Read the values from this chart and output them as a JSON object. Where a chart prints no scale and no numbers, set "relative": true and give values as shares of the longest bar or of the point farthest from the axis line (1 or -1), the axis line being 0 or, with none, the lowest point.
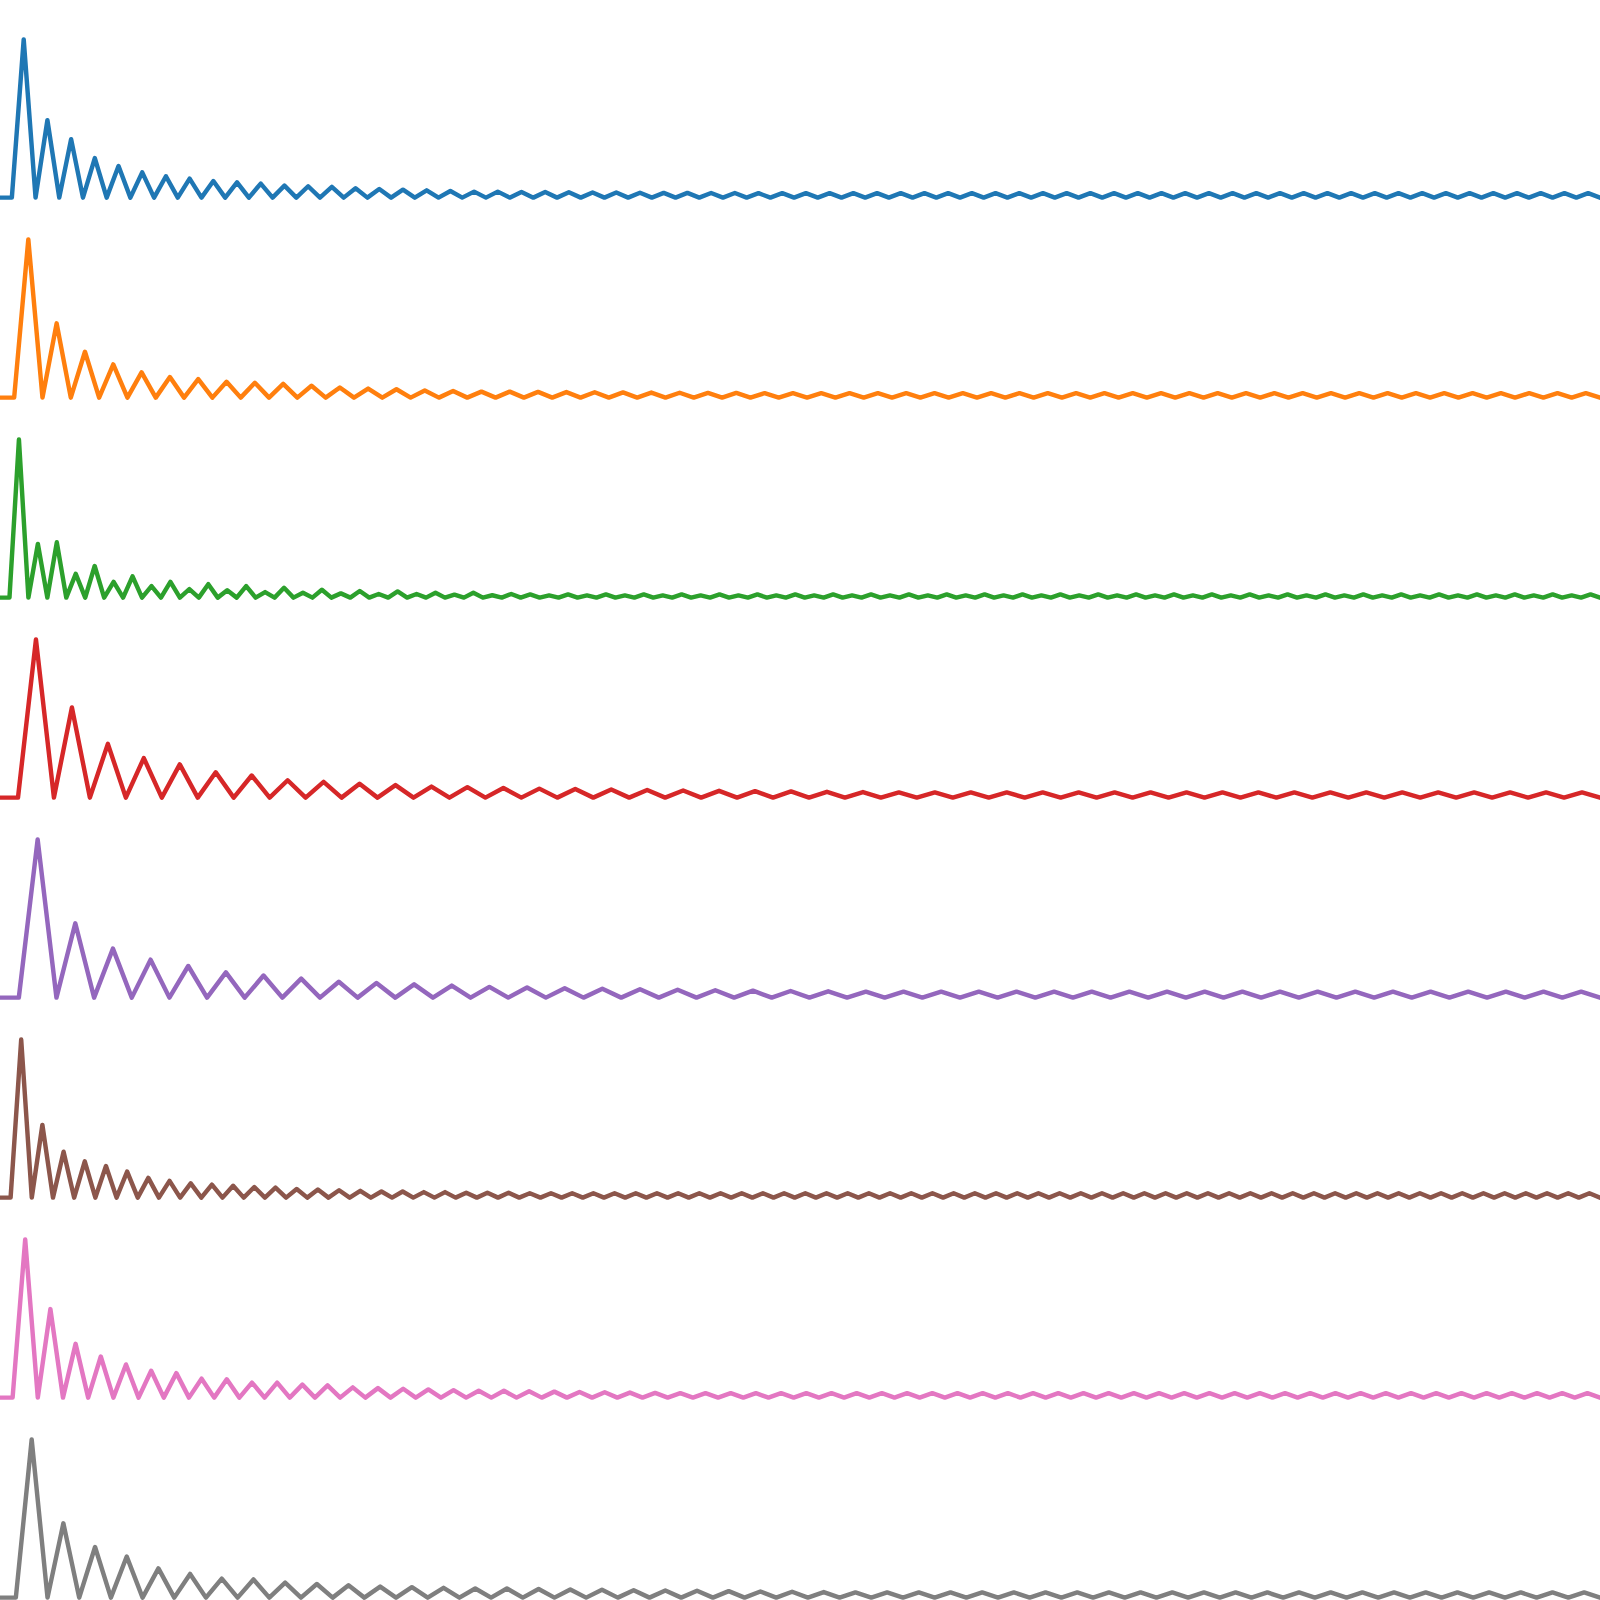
{
  "chart_data": [
    {
      "type": "line",
      "relative": true,
      "categories": [
        null,
        null,
        null,
        null,
        null,
        null,
        null,
        null,
        null,
        null,
        null,
        null,
        null,
        null,
        null,
        null,
        null,
        null,
        null,
        null,
        null,
        null,
        null,
        null,
        null,
        null,
        null,
        null,
        null,
        null,
        null,
        null,
        null,
        null,
        null,
        null,
        null,
        null,
        null,
        null,
        null,
        null,
        null,
        null,
        null,
        null,
        null,
        null,
        null,
        null,
        null,
        null,
        null,
        null,
        null,
        null,
        null,
        null,
        null,
        null,
        null,
        null,
        null,
        null,
        null,
        null,
        null,
        null,
        null,
        null,
        null,
        null,
        null,
        null,
        null,
        null,
        null,
        null,
        null,
        null,
        null,
        null,
        null,
        null,
        null,
        null,
        null,
        null,
        null,
        null,
        null,
        null,
        null,
        null,
        null,
        null,
        null,
        null,
        null,
        null,
        null,
        null,
        null,
        null,
        null,
        null,
        null,
        null,
        null,
        null,
        null,
        null,
        null,
        null,
        null,
        null,
        null,
        null,
        null,
        null,
        null,
        null,
        null,
        null,
        null,
        null,
        null,
        null,
        null,
        null,
        null,
        null,
        null,
        null,
        null,
        null
      ],
      "series": [
        {
          "color": "#1f77b4",
          "values": [
            0,
            0,
            1,
            0,
            0.49,
            0,
            0.37,
            0,
            0.25,
            0,
            0.2,
            0,
            0.16,
            0,
            0.135,
            0,
            0.12,
            0,
            0.105,
            0,
            0.097,
            0,
            0.089,
            0,
            0.076,
            0,
            0.072,
            0,
            0.068,
            0,
            0.059,
            0,
            0.055,
            0,
            0.05,
            0,
            0.046,
            0,
            0.042,
            0,
            0.038,
            0,
            0.038,
            0,
            0.036,
            0,
            0.035,
            0,
            0.034,
            0,
            0.033,
            0,
            0.032,
            0,
            0.031,
            0,
            0.03,
            0,
            0.03,
            0,
            0.029,
            0,
            0.029,
            0,
            0.028,
            0,
            0.028,
            0,
            0.028,
            0,
            0.028,
            0,
            0.028,
            0,
            0.028,
            0,
            0.028,
            0,
            0.028,
            0,
            0.028,
            0,
            0.028,
            0,
            0.028,
            0,
            0.028,
            0,
            0.028,
            0,
            0.028,
            0,
            0.028,
            0,
            0.028,
            0,
            0.028,
            0,
            0.028,
            0,
            0.028,
            0,
            0.028,
            0,
            0.028,
            0,
            0.028,
            0,
            0.028,
            0,
            0.028,
            0,
            0.028,
            0,
            0.028,
            0,
            0.028,
            0,
            0.028,
            0,
            0.028,
            0,
            0.028,
            0,
            0.028,
            0,
            0.028,
            0,
            0.028,
            0,
            0.028,
            0,
            0.028,
            0,
            0.028,
            0
          ]
        }
      ]
    },
    {
      "type": "line",
      "relative": true,
      "categories": [
        null,
        null,
        null,
        null,
        null,
        null,
        null,
        null,
        null,
        null,
        null,
        null,
        null,
        null,
        null,
        null,
        null,
        null,
        null,
        null,
        null,
        null,
        null,
        null,
        null,
        null,
        null,
        null,
        null,
        null,
        null,
        null,
        null,
        null,
        null,
        null,
        null,
        null,
        null,
        null,
        null,
        null,
        null,
        null,
        null,
        null,
        null,
        null,
        null,
        null,
        null,
        null,
        null,
        null,
        null,
        null,
        null,
        null,
        null,
        null,
        null,
        null,
        null,
        null,
        null,
        null,
        null,
        null,
        null,
        null,
        null,
        null,
        null,
        null,
        null,
        null,
        null,
        null,
        null,
        null,
        null,
        null,
        null,
        null,
        null,
        null,
        null,
        null,
        null,
        null,
        null,
        null,
        null,
        null,
        null,
        null,
        null,
        null,
        null,
        null,
        null,
        null,
        null,
        null,
        null,
        null,
        null,
        null,
        null,
        null,
        null,
        null,
        null,
        null
      ],
      "series": [
        {
          "color": "#ff7f0e",
          "values": [
            0,
            0,
            1,
            0,
            0.47,
            0,
            0.29,
            0,
            0.21,
            0,
            0.16,
            0,
            0.13,
            0,
            0.117,
            0,
            0.1,
            0,
            0.094,
            0,
            0.087,
            0,
            0.075,
            0,
            0.064,
            0,
            0.057,
            0,
            0.053,
            0,
            0.045,
            0,
            0.042,
            0,
            0.038,
            0,
            0.038,
            0,
            0.036,
            0,
            0.035,
            0,
            0.034,
            0,
            0.033,
            0,
            0.032,
            0,
            0.031,
            0,
            0.03,
            0,
            0.03,
            0,
            0.028,
            0,
            0.028,
            0,
            0.028,
            0,
            0.028,
            0,
            0.028,
            0,
            0.028,
            0,
            0.028,
            0,
            0.028,
            0,
            0.028,
            0,
            0.028,
            0,
            0.028,
            0,
            0.028,
            0,
            0.028,
            0,
            0.028,
            0,
            0.028,
            0,
            0.028,
            0,
            0.028,
            0,
            0.028,
            0,
            0.028,
            0,
            0.028,
            0,
            0.028,
            0,
            0.028,
            0,
            0.028,
            0,
            0.028,
            0,
            0.028,
            0,
            0.028,
            0,
            0.028,
            0,
            0.028,
            0,
            0.028,
            0,
            0.028,
            0
          ]
        }
      ]
    },
    {
      "type": "line",
      "relative": true,
      "categories": [
        null,
        null,
        null,
        null,
        null,
        null,
        null,
        null,
        null,
        null,
        null,
        null,
        null,
        null,
        null,
        null,
        null,
        null,
        null,
        null,
        null,
        null,
        null,
        null,
        null,
        null,
        null,
        null,
        null,
        null,
        null,
        null,
        null,
        null,
        null,
        null,
        null,
        null,
        null,
        null,
        null,
        null,
        null,
        null,
        null,
        null,
        null,
        null,
        null,
        null,
        null,
        null,
        null,
        null,
        null,
        null,
        null,
        null,
        null,
        null,
        null,
        null,
        null,
        null,
        null,
        null,
        null,
        null,
        null,
        null,
        null,
        null,
        null,
        null,
        null,
        null,
        null,
        null,
        null,
        null,
        null,
        null,
        null,
        null,
        null,
        null,
        null,
        null,
        null,
        null,
        null,
        null,
        null,
        null,
        null,
        null,
        null,
        null,
        null,
        null,
        null,
        null,
        null,
        null,
        null,
        null,
        null,
        null,
        null,
        null,
        null,
        null,
        null,
        null,
        null,
        null,
        null,
        null,
        null,
        null,
        null,
        null,
        null,
        null,
        null,
        null,
        null,
        null,
        null,
        null,
        null,
        null,
        null,
        null,
        null,
        null,
        null,
        null,
        null,
        null,
        null,
        null,
        null,
        null,
        null,
        null,
        null,
        null,
        null,
        null,
        null,
        null,
        null,
        null,
        null,
        null,
        null,
        null,
        null,
        null,
        null,
        null,
        null,
        null,
        null,
        null,
        null,
        null,
        null,
        null
      ],
      "series": [
        {
          "color": "#2ca02c",
          "values": [
            0,
            0,
            1,
            0,
            0.34,
            0,
            0.35,
            0,
            0.15,
            0,
            0.2,
            0,
            0.1,
            0,
            0.135,
            0,
            0.073,
            0,
            0.1,
            0,
            0.054,
            0,
            0.085,
            0,
            0.046,
            0,
            0.073,
            0,
            0.035,
            0,
            0.062,
            0,
            0.031,
            0,
            0.05,
            0,
            0.027,
            0,
            0.042,
            0,
            0.023,
            0,
            0.039,
            0,
            0.023,
            0,
            0.031,
            0,
            0.019,
            0,
            0.031,
            0,
            0.015,
            0,
            0.023,
            0,
            0.02,
            0,
            0.014,
            0,
            0.02,
            0,
            0.014,
            0,
            0.02,
            0,
            0.014,
            0,
            0.02,
            0,
            0.014,
            0,
            0.02,
            0,
            0.014,
            0,
            0.02,
            0,
            0.014,
            0,
            0.02,
            0,
            0.014,
            0,
            0.02,
            0,
            0.014,
            0,
            0.02,
            0,
            0.014,
            0,
            0.02,
            0,
            0.014,
            0,
            0.02,
            0,
            0.014,
            0,
            0.02,
            0,
            0.014,
            0,
            0.02,
            0,
            0.014,
            0,
            0.02,
            0,
            0.014,
            0,
            0.02,
            0,
            0.014,
            0,
            0.02,
            0,
            0.014,
            0,
            0.02,
            0,
            0.014,
            0,
            0.02,
            0,
            0.014,
            0,
            0.02,
            0,
            0.014,
            0,
            0.02,
            0,
            0.014,
            0,
            0.02,
            0,
            0.014,
            0,
            0.02,
            0,
            0.014,
            0,
            0.02,
            0,
            0.014,
            0,
            0.02,
            0,
            0.014,
            0,
            0.02,
            0,
            0.014,
            0,
            0.02,
            0,
            0.014,
            0,
            0.02,
            0,
            0.014,
            0,
            0.02,
            0,
            0.014,
            0,
            0.02,
            0
          ]
        }
      ]
    },
    {
      "type": "line",
      "relative": true,
      "categories": [
        null,
        null,
        null,
        null,
        null,
        null,
        null,
        null,
        null,
        null,
        null,
        null,
        null,
        null,
        null,
        null,
        null,
        null,
        null,
        null,
        null,
        null,
        null,
        null,
        null,
        null,
        null,
        null,
        null,
        null,
        null,
        null,
        null,
        null,
        null,
        null,
        null,
        null,
        null,
        null,
        null,
        null,
        null,
        null,
        null,
        null,
        null,
        null,
        null,
        null,
        null,
        null,
        null,
        null,
        null,
        null,
        null,
        null,
        null,
        null,
        null,
        null,
        null,
        null,
        null,
        null,
        null,
        null,
        null,
        null,
        null,
        null,
        null,
        null,
        null,
        null,
        null,
        null,
        null,
        null,
        null,
        null,
        null,
        null,
        null,
        null,
        null,
        null,
        null,
        null
      ],
      "series": [
        {
          "color": "#d62728",
          "values": [
            0,
            0,
            1,
            0,
            0.57,
            0,
            0.34,
            0,
            0.25,
            0,
            0.21,
            0,
            0.16,
            0,
            0.14,
            0,
            0.11,
            0,
            0.1,
            0,
            0.088,
            0,
            0.079,
            0,
            0.07,
            0,
            0.066,
            0,
            0.061,
            0,
            0.057,
            0,
            0.054,
            0,
            0.051,
            0,
            0.048,
            0,
            0.045,
            0,
            0.043,
            0,
            0.041,
            0,
            0.039,
            0,
            0.037,
            0,
            0.035,
            0,
            0.033,
            0,
            0.033,
            0,
            0.033,
            0,
            0.033,
            0,
            0.033,
            0,
            0.033,
            0,
            0.033,
            0,
            0.033,
            0,
            0.033,
            0,
            0.033,
            0,
            0.033,
            0,
            0.033,
            0,
            0.033,
            0,
            0.033,
            0,
            0.033,
            0,
            0.033,
            0,
            0.033,
            0,
            0.033,
            0,
            0.033,
            0,
            0.033,
            0
          ]
        }
      ]
    },
    {
      "type": "line",
      "relative": true,
      "categories": [
        null,
        null,
        null,
        null,
        null,
        null,
        null,
        null,
        null,
        null,
        null,
        null,
        null,
        null,
        null,
        null,
        null,
        null,
        null,
        null,
        null,
        null,
        null,
        null,
        null,
        null,
        null,
        null,
        null,
        null,
        null,
        null,
        null,
        null,
        null,
        null,
        null,
        null,
        null,
        null,
        null,
        null,
        null,
        null,
        null,
        null,
        null,
        null,
        null,
        null,
        null,
        null,
        null,
        null,
        null,
        null,
        null,
        null,
        null,
        null,
        null,
        null,
        null,
        null,
        null,
        null,
        null,
        null,
        null,
        null,
        null,
        null,
        null,
        null,
        null,
        null,
        null,
        null,
        null,
        null,
        null,
        null,
        null,
        null,
        null,
        null
      ],
      "series": [
        {
          "color": "#9467bd",
          "values": [
            0,
            0,
            1,
            0,
            0.47,
            0,
            0.31,
            0,
            0.24,
            0,
            0.2,
            0,
            0.16,
            0,
            0.14,
            0,
            0.12,
            0,
            0.1,
            0,
            0.092,
            0,
            0.084,
            0,
            0.076,
            0,
            0.068,
            0,
            0.064,
            0,
            0.06,
            0,
            0.056,
            0,
            0.053,
            0,
            0.05,
            0,
            0.047,
            0,
            0.044,
            0,
            0.042,
            0,
            0.04,
            0,
            0.038,
            0,
            0.038,
            0,
            0.038,
            0,
            0.038,
            0,
            0.038,
            0,
            0.038,
            0,
            0.038,
            0,
            0.038,
            0,
            0.038,
            0,
            0.038,
            0,
            0.038,
            0,
            0.038,
            0,
            0.038,
            0,
            0.038,
            0,
            0.038,
            0,
            0.038,
            0,
            0.038,
            0,
            0.038,
            0,
            0.038,
            0,
            0.038,
            0
          ]
        }
      ]
    },
    {
      "type": "line",
      "relative": true,
      "categories": [
        null,
        null,
        null,
        null,
        null,
        null,
        null,
        null,
        null,
        null,
        null,
        null,
        null,
        null,
        null,
        null,
        null,
        null,
        null,
        null,
        null,
        null,
        null,
        null,
        null,
        null,
        null,
        null,
        null,
        null,
        null,
        null,
        null,
        null,
        null,
        null,
        null,
        null,
        null,
        null,
        null,
        null,
        null,
        null,
        null,
        null,
        null,
        null,
        null,
        null,
        null,
        null,
        null,
        null,
        null,
        null,
        null,
        null,
        null,
        null,
        null,
        null,
        null,
        null,
        null,
        null,
        null,
        null,
        null,
        null,
        null,
        null,
        null,
        null,
        null,
        null,
        null,
        null,
        null,
        null,
        null,
        null,
        null,
        null,
        null,
        null,
        null,
        null,
        null,
        null,
        null,
        null,
        null,
        null,
        null,
        null,
        null,
        null,
        null,
        null,
        null,
        null,
        null,
        null,
        null,
        null,
        null,
        null,
        null,
        null,
        null,
        null,
        null,
        null,
        null,
        null,
        null,
        null,
        null,
        null,
        null,
        null,
        null,
        null,
        null,
        null,
        null,
        null,
        null,
        null,
        null,
        null,
        null,
        null,
        null,
        null,
        null,
        null,
        null,
        null,
        null,
        null,
        null,
        null,
        null,
        null,
        null,
        null,
        null,
        null,
        null,
        null
      ],
      "series": [
        {
          "color": "#8c564b",
          "values": [
            0,
            0,
            1,
            0,
            0.46,
            0,
            0.29,
            0,
            0.23,
            0,
            0.2,
            0,
            0.165,
            0,
            0.125,
            0,
            0.106,
            0,
            0.09,
            0,
            0.082,
            0,
            0.075,
            0,
            0.067,
            0,
            0.063,
            0,
            0.055,
            0,
            0.051,
            0,
            0.047,
            0,
            0.043,
            0,
            0.039,
            0,
            0.039,
            0,
            0.035,
            0,
            0.035,
            0,
            0.031,
            0,
            0.031,
            0,
            0.031,
            0,
            0.028,
            0,
            0.028,
            0,
            0.028,
            0,
            0.028,
            0,
            0.028,
            0,
            0.028,
            0,
            0.028,
            0,
            0.028,
            0,
            0.028,
            0,
            0.028,
            0,
            0.028,
            0,
            0.028,
            0,
            0.028,
            0,
            0.028,
            0,
            0.028,
            0,
            0.028,
            0,
            0.028,
            0,
            0.028,
            0,
            0.028,
            0,
            0.028,
            0,
            0.028,
            0,
            0.028,
            0,
            0.028,
            0,
            0.028,
            0,
            0.028,
            0,
            0.028,
            0,
            0.028,
            0,
            0.028,
            0,
            0.028,
            0,
            0.028,
            0,
            0.028,
            0,
            0.028,
            0,
            0.028,
            0,
            0.028,
            0,
            0.028,
            0,
            0.028,
            0,
            0.028,
            0,
            0.028,
            0,
            0.028,
            0,
            0.028,
            0,
            0.028,
            0,
            0.028,
            0,
            0.028,
            0,
            0.028,
            0,
            0.028,
            0,
            0.028,
            0,
            0.028,
            0,
            0.028,
            0,
            0.028,
            0,
            0.028,
            0,
            0.028,
            0
          ]
        }
      ]
    },
    {
      "type": "line",
      "relative": true,
      "categories": [
        null,
        null,
        null,
        null,
        null,
        null,
        null,
        null,
        null,
        null,
        null,
        null,
        null,
        null,
        null,
        null,
        null,
        null,
        null,
        null,
        null,
        null,
        null,
        null,
        null,
        null,
        null,
        null,
        null,
        null,
        null,
        null,
        null,
        null,
        null,
        null,
        null,
        null,
        null,
        null,
        null,
        null,
        null,
        null,
        null,
        null,
        null,
        null,
        null,
        null,
        null,
        null,
        null,
        null,
        null,
        null,
        null,
        null,
        null,
        null,
        null,
        null,
        null,
        null,
        null,
        null,
        null,
        null,
        null,
        null,
        null,
        null,
        null,
        null,
        null,
        null,
        null,
        null,
        null,
        null,
        null,
        null,
        null,
        null,
        null,
        null,
        null,
        null,
        null,
        null,
        null,
        null,
        null,
        null,
        null,
        null,
        null,
        null,
        null,
        null,
        null,
        null,
        null,
        null,
        null,
        null,
        null,
        null,
        null,
        null,
        null,
        null,
        null,
        null,
        null,
        null,
        null,
        null,
        null,
        null,
        null,
        null,
        null,
        null,
        null,
        null,
        null,
        null
      ],
      "series": [
        {
          "color": "#e377c2",
          "values": [
            0,
            0,
            1,
            0,
            0.56,
            0,
            0.34,
            0,
            0.26,
            0,
            0.21,
            0,
            0.17,
            0,
            0.155,
            0,
            0.12,
            0,
            0.116,
            0,
            0.095,
            0,
            0.095,
            0,
            0.082,
            0,
            0.078,
            0,
            0.065,
            0,
            0.06,
            0,
            0.056,
            0,
            0.052,
            0,
            0.047,
            0,
            0.043,
            0,
            0.043,
            0,
            0.04,
            0,
            0.038,
            0,
            0.036,
            0,
            0.034,
            0,
            0.032,
            0,
            0.03,
            0,
            0.028,
            0,
            0.028,
            0,
            0.028,
            0,
            0.028,
            0,
            0.028,
            0,
            0.028,
            0,
            0.028,
            0,
            0.028,
            0,
            0.028,
            0,
            0.028,
            0,
            0.028,
            0,
            0.028,
            0,
            0.028,
            0,
            0.028,
            0,
            0.028,
            0,
            0.028,
            0,
            0.028,
            0,
            0.028,
            0,
            0.028,
            0,
            0.028,
            0,
            0.028,
            0,
            0.028,
            0,
            0.028,
            0,
            0.028,
            0,
            0.028,
            0,
            0.028,
            0,
            0.028,
            0,
            0.028,
            0,
            0.028,
            0,
            0.028,
            0,
            0.028,
            0,
            0.028,
            0,
            0.028,
            0,
            0.028,
            0,
            0.028,
            0,
            0.028,
            0,
            0.028,
            0
          ]
        }
      ]
    },
    {
      "type": "line",
      "relative": true,
      "categories": [
        null,
        null,
        null,
        null,
        null,
        null,
        null,
        null,
        null,
        null,
        null,
        null,
        null,
        null,
        null,
        null,
        null,
        null,
        null,
        null,
        null,
        null,
        null,
        null,
        null,
        null,
        null,
        null,
        null,
        null,
        null,
        null,
        null,
        null,
        null,
        null,
        null,
        null,
        null,
        null,
        null,
        null,
        null,
        null,
        null,
        null,
        null,
        null,
        null,
        null,
        null,
        null,
        null,
        null,
        null,
        null,
        null,
        null,
        null,
        null,
        null,
        null,
        null,
        null,
        null,
        null,
        null,
        null,
        null,
        null,
        null,
        null,
        null,
        null,
        null,
        null,
        null,
        null,
        null,
        null,
        null,
        null,
        null,
        null,
        null,
        null,
        null,
        null,
        null,
        null,
        null,
        null,
        null,
        null,
        null,
        null,
        null,
        null,
        null,
        null,
        null,
        null
      ],
      "series": [
        {
          "color": "#7f7f7f",
          "values": [
            0,
            0,
            1,
            0,
            0.47,
            0,
            0.32,
            0,
            0.26,
            0,
            0.185,
            0,
            0.15,
            0,
            0.12,
            0,
            0.115,
            0,
            0.095,
            0,
            0.086,
            0,
            0.078,
            0,
            0.07,
            0,
            0.066,
            0,
            0.062,
            0,
            0.058,
            0,
            0.058,
            0,
            0.055,
            0,
            0.052,
            0,
            0.05,
            0,
            0.047,
            0,
            0.045,
            0,
            0.043,
            0,
            0.041,
            0,
            0.039,
            0,
            0.037,
            0,
            0.035,
            0,
            0.033,
            0,
            0.033,
            0,
            0.033,
            0,
            0.033,
            0,
            0.033,
            0,
            0.033,
            0,
            0.033,
            0,
            0.033,
            0,
            0.033,
            0,
            0.033,
            0,
            0.033,
            0,
            0.033,
            0,
            0.033,
            0,
            0.033,
            0,
            0.033,
            0,
            0.033,
            0,
            0.033,
            0,
            0.033,
            0,
            0.033,
            0,
            0.033,
            0,
            0.033,
            0,
            0.033,
            0,
            0.033,
            0,
            0.033,
            0
          ]
        }
      ]
    }
  ]
}
